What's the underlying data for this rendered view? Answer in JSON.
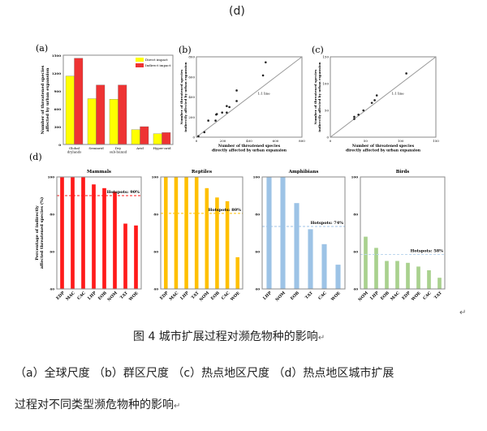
{
  "figure_label": "(d)",
  "caption": "图 4 城市扩展过程对濒危物种的影响",
  "desc_line1": "（a）全球尺度  （b）群区尺度  （c）热点地区尺度  （d）热点地区城市扩展",
  "desc_line2": "过程对不同类型濒危物种的影响",
  "return_mark": "↵",
  "chart_data": [
    {
      "panel": "(a)",
      "type": "bar",
      "categories": [
        "Global drylands",
        "Semiarid",
        "Dry sub-humid",
        "Arid",
        "Hyper-arid"
      ],
      "series": [
        {
          "name": "Direct impact",
          "color": "#ffff00",
          "values": [
            1150,
            770,
            760,
            250,
            180
          ]
        },
        {
          "name": "Indirect impact",
          "color": "#ee3333",
          "values": [
            1450,
            1000,
            1000,
            300,
            200
          ]
        }
      ],
      "ylabel": "Number of threatened species affected by urban expansion",
      "ylim": [
        0,
        1500
      ],
      "yticks": [
        0,
        300,
        600,
        900,
        1200,
        1500
      ],
      "legend": "top-right"
    },
    {
      "panel": "(b)",
      "type": "scatter",
      "xlabel": "Number of threatened species directly affected by urban expansion",
      "ylabel": "Number of threatened species indirectly affected by urban expansion",
      "xlim": [
        0,
        800
      ],
      "ylim": [
        0,
        800
      ],
      "xticks": [
        0,
        200,
        400,
        600,
        800
      ],
      "yticks": [
        0,
        200,
        400,
        600,
        800
      ],
      "annotation": "1:1 line",
      "points": [
        [
          15,
          10
        ],
        [
          60,
          50
        ],
        [
          90,
          165
        ],
        [
          145,
          165
        ],
        [
          150,
          225
        ],
        [
          155,
          230
        ],
        [
          195,
          245
        ],
        [
          230,
          245
        ],
        [
          230,
          310
        ],
        [
          250,
          300
        ],
        [
          305,
          360
        ],
        [
          305,
          465
        ],
        [
          505,
          615
        ],
        [
          525,
          745
        ]
      ]
    },
    {
      "panel": "(c)",
      "type": "scatter",
      "xlabel": "Number of threatened species directly affected by urban expansion",
      "ylabel": "Number of threatened species indirectly affected by urban expansion",
      "xlim": [
        0,
        150
      ],
      "ylim": [
        0,
        150
      ],
      "xticks": [
        0,
        50,
        100,
        150
      ],
      "yticks": [
        0,
        50,
        100,
        150
      ],
      "annotation": "1:1 line",
      "points": [
        [
          34,
          34
        ],
        [
          34,
          38
        ],
        [
          40,
          42
        ],
        [
          47,
          50
        ],
        [
          59,
          64
        ],
        [
          63,
          69
        ],
        [
          66,
          78
        ],
        [
          108,
          119
        ]
      ]
    },
    {
      "panel": "(d)",
      "type": "bar",
      "ylabel": "Percentage of indirectly affected threatened species (%)",
      "ylim": [
        40,
        100
      ],
      "yticks": [
        40,
        60,
        80,
        100
      ],
      "groups": [
        {
          "title": "Mammals",
          "color": "#ff1a1a",
          "hotspot": 90,
          "hotspot_label": "Hotspots: 90%",
          "categories": [
            "EDP",
            "MAC",
            "CAC",
            "LHP",
            "EOB",
            "NOM",
            "TAT",
            "WOE"
          ],
          "values": [
            100,
            100,
            100,
            96,
            94,
            92,
            75,
            74
          ]
        },
        {
          "title": "Reptiles",
          "color": "#ffc000",
          "hotspot": 80.5,
          "hotspot_label": "Hotspots: 80%",
          "categories": [
            "EDP",
            "MAC",
            "LHP",
            "TAT",
            "NOM",
            "EOB",
            "CAC",
            "WOE"
          ],
          "values": [
            100,
            100,
            100,
            100,
            94,
            89,
            87,
            57
          ]
        },
        {
          "title": "Amphibians",
          "color": "#9dc3e6",
          "hotspot": 73.5,
          "hotspot_label": "Hotspots: 74%",
          "categories": [
            "LHP",
            "NOM",
            "EOB",
            "TAT",
            "CAC",
            "WOE"
          ],
          "values": [
            100,
            100,
            86,
            72,
            64,
            53
          ]
        },
        {
          "title": "Birds",
          "color": "#a9d18e",
          "hotspot": 58.5,
          "hotspot_label": "Hotspots: 58%",
          "categories": [
            "NOM",
            "LHP",
            "EOB",
            "MAC",
            "EDP",
            "WOE",
            "CAC",
            "TAT"
          ],
          "values": [
            68,
            62,
            55,
            55,
            54,
            52,
            50,
            46
          ]
        }
      ]
    }
  ]
}
